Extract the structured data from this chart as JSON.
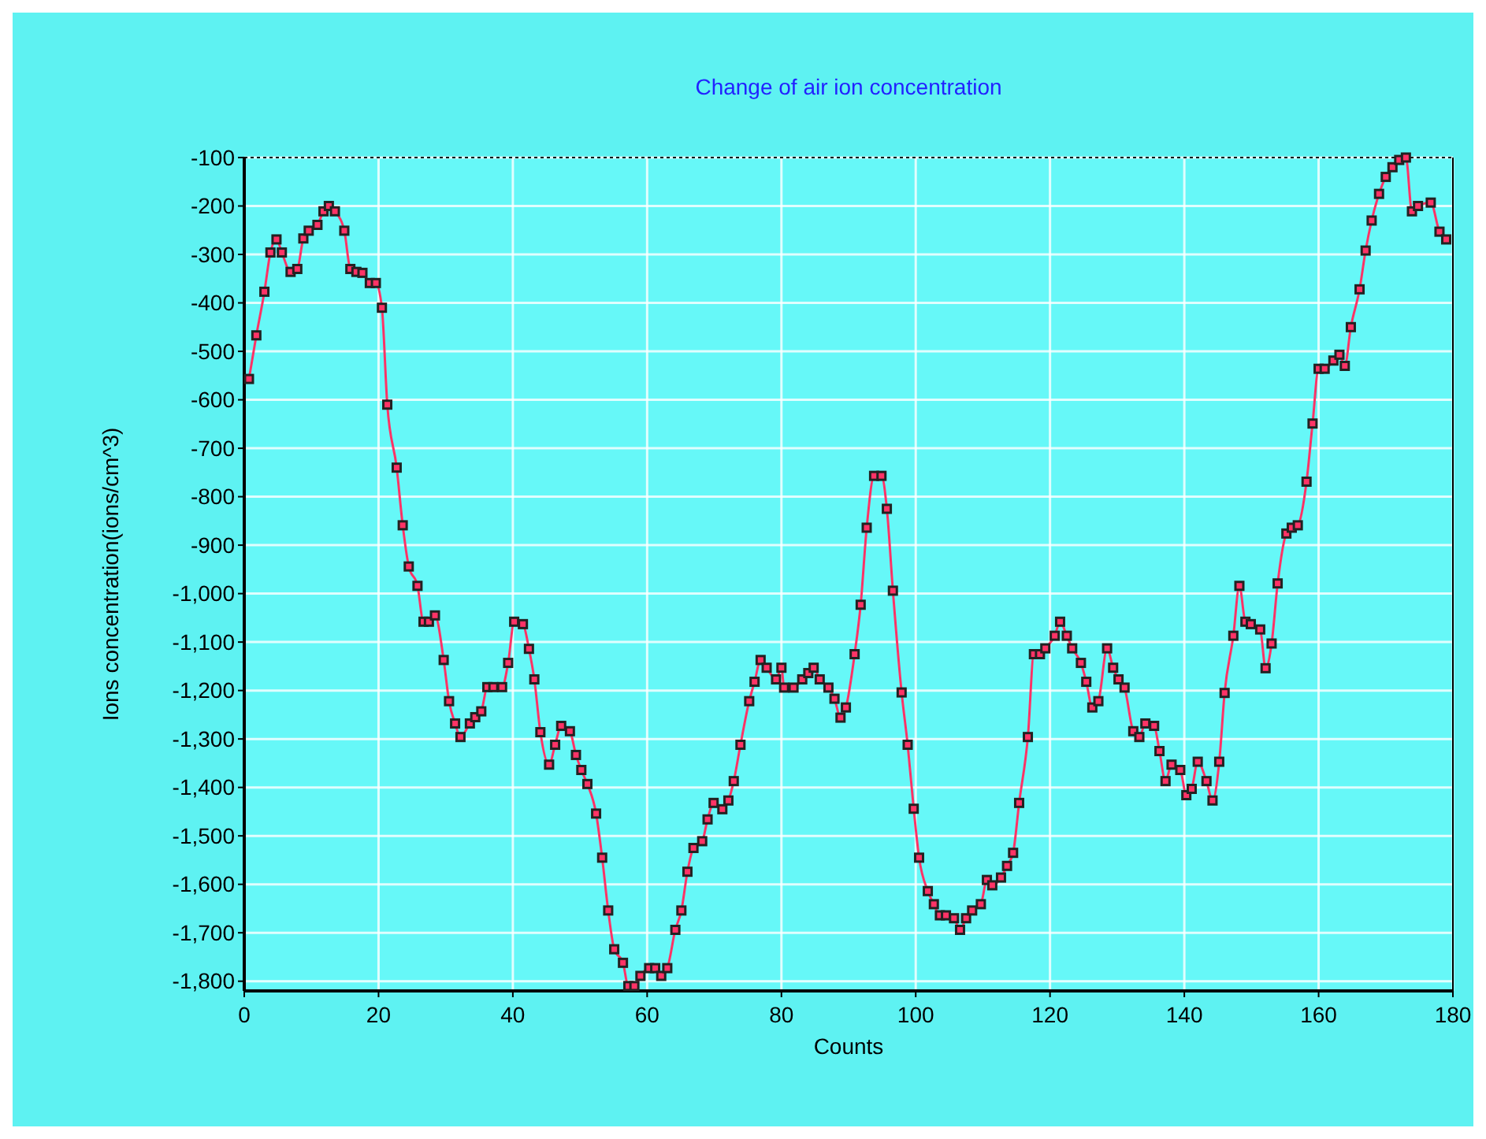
{
  "chart_data": {
    "type": "line",
    "title": "Change of air ion concentration",
    "xlabel": "Counts",
    "ylabel": "Ions concentration(ions/cm^3)",
    "xlim": [
      0,
      180
    ],
    "xticks": [
      0,
      20,
      40,
      60,
      80,
      100,
      120,
      140,
      160,
      180
    ],
    "ylim": [
      -1820,
      -100
    ],
    "yticks": [
      -100,
      -200,
      -300,
      -400,
      -500,
      -600,
      -700,
      -800,
      -900,
      {
        "value": -1000,
        "label": "-1,000"
      },
      {
        "value": -1100,
        "label": "-1,100"
      },
      {
        "value": -1200,
        "label": "-1,200"
      },
      {
        "value": -1300,
        "label": "-1,300"
      },
      {
        "value": -1400,
        "label": "-1,400"
      },
      {
        "value": -1500,
        "label": "-1,500"
      },
      {
        "value": -1600,
        "label": "-1,600"
      },
      {
        "value": -1700,
        "label": "-1,700"
      },
      {
        "value": -1800,
        "label": "-1,800"
      }
    ],
    "grid": true,
    "marker": "square",
    "line_style": "solid",
    "series": [
      {
        "color": "#ff3366",
        "x": [
          0.7,
          1.8,
          3.0,
          3.9,
          4.8,
          5.6,
          6.9,
          7.9,
          8.8,
          9.6,
          10.9,
          11.8,
          12.6,
          13.5,
          14.9,
          15.8,
          16.7,
          17.6,
          18.7,
          19.6,
          20.5,
          21.3,
          22.7,
          23.6,
          24.5,
          25.8,
          26.7,
          27.5,
          28.4,
          29.7,
          30.5,
          31.4,
          32.2,
          33.6,
          34.4,
          35.3,
          36.2,
          37.1,
          38.4,
          39.3,
          40.2,
          41.5,
          42.4,
          43.2,
          44.1,
          45.4,
          46.3,
          47.2,
          48.5,
          49.4,
          50.2,
          51.1,
          52.4,
          53.3,
          54.2,
          55.1,
          56.4,
          57.2,
          58.1,
          59.0,
          60.3,
          61.2,
          62.1,
          63.0,
          64.2,
          65.1,
          66.0,
          66.9,
          68.2,
          69.0,
          69.9,
          71.2,
          72.1,
          72.9,
          73.9,
          75.2,
          76.0,
          76.9,
          77.8,
          79.2,
          80.0,
          80.4,
          81.8,
          83.1,
          84.0,
          84.8,
          85.7,
          87.0,
          87.9,
          88.8,
          89.6,
          90.9,
          91.8,
          92.7,
          93.8,
          94.9,
          95.7,
          96.6,
          97.9,
          98.8,
          99.7,
          100.5,
          101.8,
          102.7,
          103.6,
          104.5,
          105.7,
          106.6,
          107.5,
          108.4,
          109.7,
          110.6,
          111.4,
          112.7,
          113.6,
          114.5,
          115.4,
          116.7,
          117.6,
          118.5,
          119.3,
          120.7,
          121.5,
          122.5,
          123.3,
          124.6,
          125.4,
          126.3,
          127.2,
          128.5,
          129.4,
          130.2,
          131.1,
          132.4,
          133.3,
          134.2,
          135.5,
          136.3,
          137.2,
          138.1,
          139.4,
          140.3,
          141.1,
          142.0,
          143.3,
          144.2,
          145.2,
          146.0,
          147.3,
          148.2,
          149.1,
          149.9,
          151.3,
          152.1,
          153.0,
          153.9,
          155.2,
          156.0,
          156.9,
          158.2,
          159.1,
          160.0,
          160.9,
          162.2,
          163.1,
          163.9,
          164.8,
          166.1,
          167.0,
          167.9,
          169.0,
          170.0,
          171.0,
          172.0,
          173.0,
          173.9,
          174.8,
          176.7,
          178.0,
          179.0
        ],
        "values": [
          -557,
          -467,
          -377,
          -296,
          -269,
          -296,
          -336,
          -330,
          -267,
          -251,
          -239,
          -211,
          -200,
          -211,
          -251,
          -330,
          -336,
          -338,
          -359,
          -359,
          -410,
          -610,
          -740,
          -859,
          -944,
          -984,
          -1058,
          -1058,
          -1045,
          -1137,
          -1222,
          -1268,
          -1296,
          -1268,
          -1255,
          -1243,
          -1193,
          -1193,
          -1193,
          -1143,
          -1058,
          -1063,
          -1114,
          -1177,
          -1286,
          -1353,
          -1312,
          -1273,
          -1284,
          -1333,
          -1364,
          -1393,
          -1454,
          -1545,
          -1654,
          -1734,
          -1762,
          -1810,
          -1810,
          -1789,
          -1773,
          -1773,
          -1789,
          -1773,
          -1694,
          -1654,
          -1574,
          -1525,
          -1511,
          -1466,
          -1432,
          -1445,
          -1427,
          -1387,
          -1312,
          -1222,
          -1182,
          -1137,
          -1153,
          -1177,
          -1153,
          -1194,
          -1194,
          -1177,
          -1164,
          -1153,
          -1177,
          -1194,
          -1217,
          -1256,
          -1235,
          -1125,
          -1023,
          -864,
          -757,
          -757,
          -825,
          -994,
          -1204,
          -1312,
          -1444,
          -1545,
          -1614,
          -1641,
          -1664,
          -1664,
          -1670,
          -1694,
          -1670,
          -1654,
          -1641,
          -1591,
          -1602,
          -1586,
          -1562,
          -1535,
          -1432,
          -1296,
          -1125,
          -1125,
          -1113,
          -1087,
          -1058,
          -1087,
          -1113,
          -1143,
          -1182,
          -1235,
          -1222,
          -1113,
          -1153,
          -1177,
          -1194,
          -1284,
          -1296,
          -1268,
          -1273,
          -1325,
          -1387,
          -1353,
          -1364,
          -1416,
          -1403,
          -1347,
          -1387,
          -1427,
          -1347,
          -1205,
          -1087,
          -984,
          -1058,
          -1063,
          -1074,
          -1154,
          -1103,
          -979,
          -876,
          -864,
          -859,
          -769,
          -649,
          -536,
          -536,
          -519,
          -507,
          -530,
          -450,
          -372,
          -292,
          -230,
          -175,
          -140,
          -120,
          -105,
          -100,
          -211,
          -200,
          -193,
          -253,
          -269
        ]
      }
    ]
  }
}
